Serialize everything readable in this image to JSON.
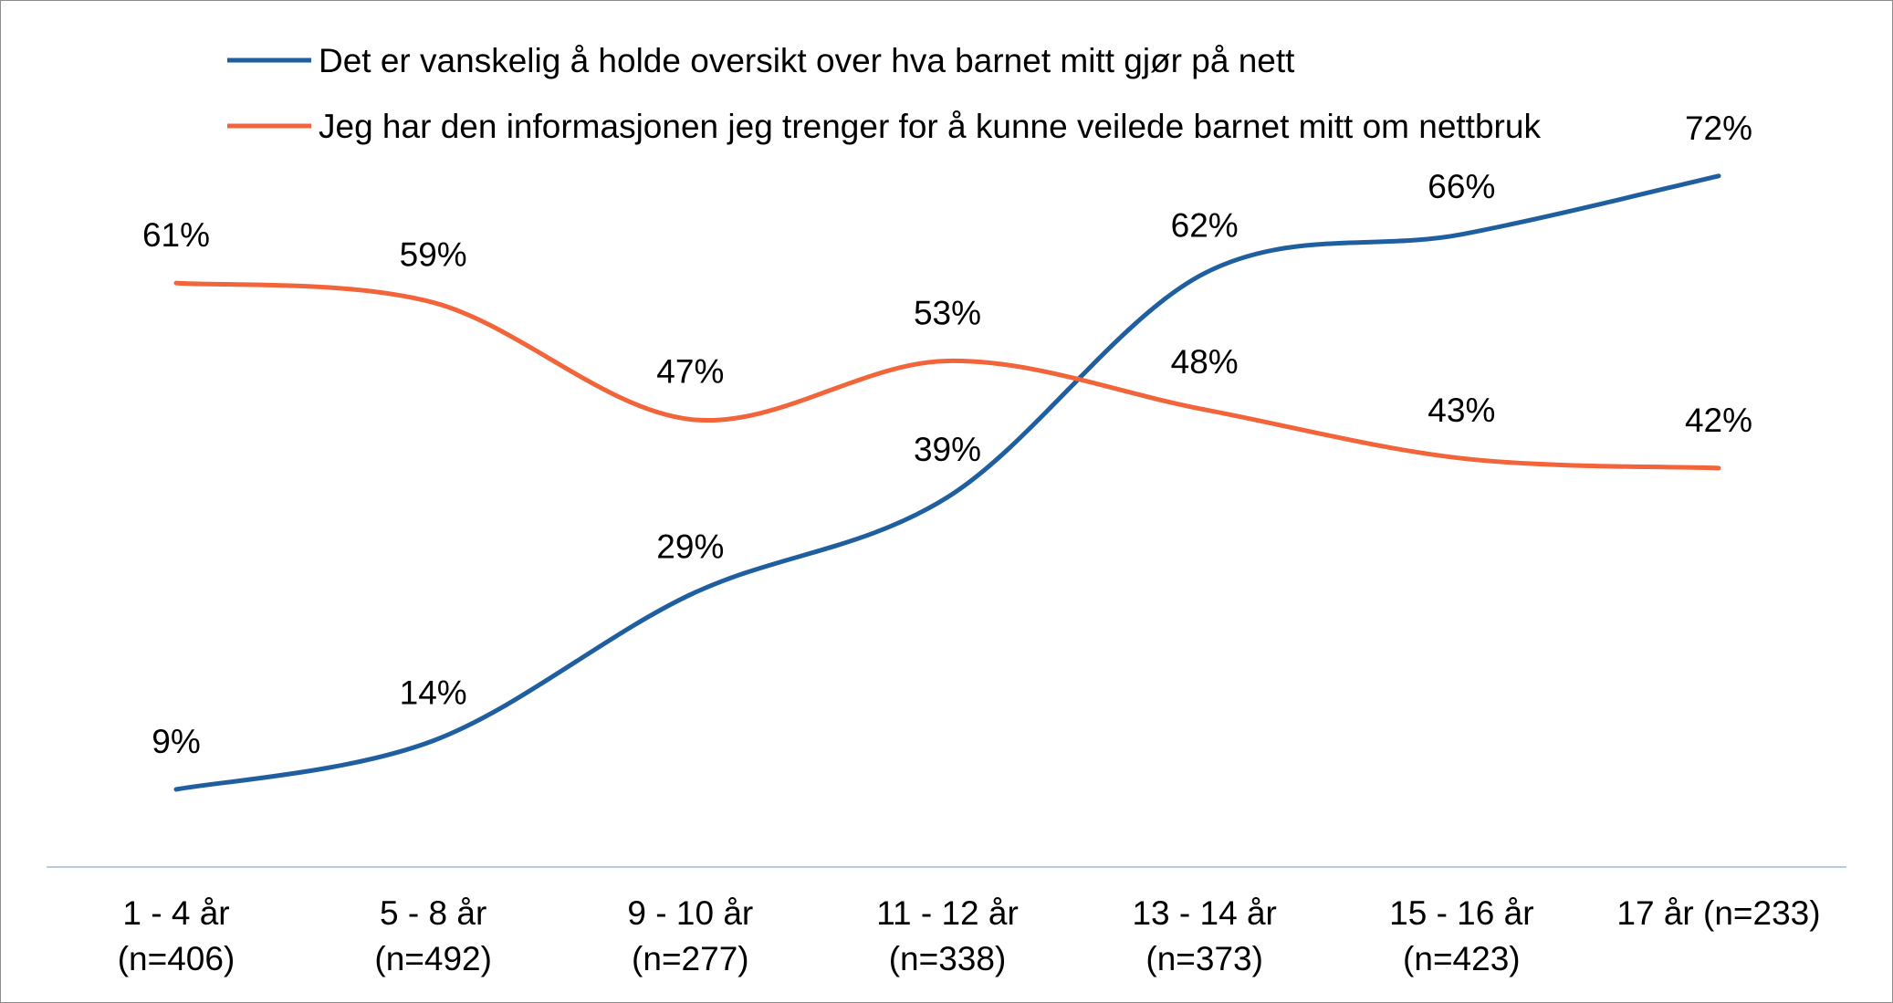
{
  "chart_data": {
    "type": "line",
    "categories": [
      [
        "1 - 4 år",
        "(n=406)"
      ],
      [
        "5 - 8 år",
        "(n=492)"
      ],
      [
        "9 - 10 år",
        "(n=277)"
      ],
      [
        "11 - 12 år",
        "(n=338)"
      ],
      [
        "13 - 14 år",
        "(n=373)"
      ],
      [
        "15 - 16 år",
        "(n=423)"
      ],
      [
        "17 år (n=233)"
      ]
    ],
    "series": [
      {
        "name": "Det er vanskelig å holde oversikt over hva barnet mitt gjør på nett",
        "color": "#1f5fa0",
        "values": [
          9,
          14,
          29,
          39,
          62,
          66,
          72
        ],
        "labels": [
          "9%",
          "14%",
          "29%",
          "39%",
          "62%",
          "66%",
          "72%"
        ],
        "label_position": [
          "above",
          "above",
          "above",
          "above",
          "above",
          "above",
          "above"
        ]
      },
      {
        "name": "Jeg har den informasjonen jeg trenger for å kunne veilede barnet mitt om nettbruk",
        "color": "#f2643a",
        "values": [
          61,
          59,
          47,
          53,
          48,
          43,
          42
        ],
        "labels": [
          "61%",
          "59%",
          "47%",
          "53%",
          "48%",
          "43%",
          "42%"
        ],
        "label_position": [
          "above",
          "above",
          "above",
          "above",
          "above",
          "above",
          "above"
        ]
      }
    ],
    "title": "",
    "xlabel": "",
    "ylabel": "",
    "ylim": [
      0,
      100
    ],
    "grid": false,
    "legend": "top",
    "axis_color": "#b8cce0"
  }
}
